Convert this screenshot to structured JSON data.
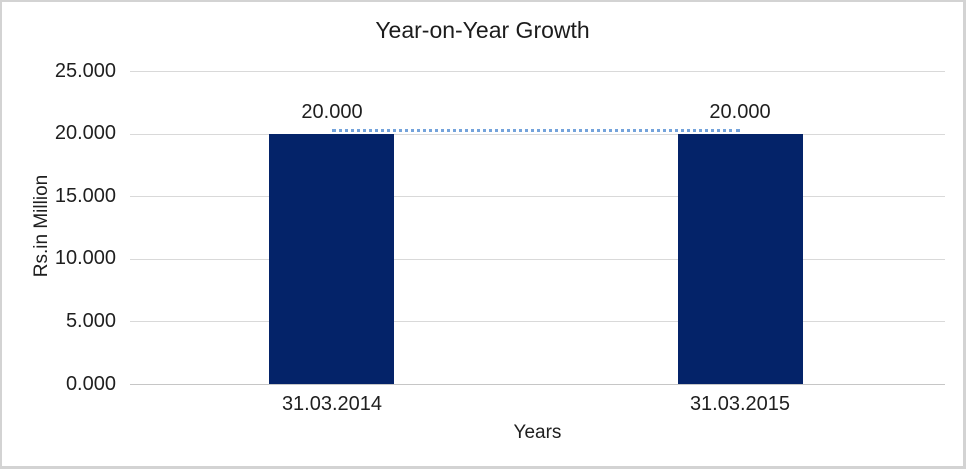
{
  "chart_data": {
    "type": "bar",
    "title": "Year-on-Year Growth",
    "xlabel": "Years",
    "ylabel": "Rs.in Million",
    "categories": [
      "31.03.2014",
      "31.03.2015"
    ],
    "series": [
      {
        "name": "bar-series",
        "type": "bar",
        "values": [
          20.0,
          20.0
        ]
      },
      {
        "name": "connector-line",
        "type": "line",
        "style": "dotted",
        "values": [
          20.0,
          20.0
        ]
      }
    ],
    "data_labels": [
      "20.000",
      "20.000"
    ],
    "yticks": [
      "25.000",
      "20.000",
      "15.000",
      "10.000",
      "5.000",
      "0.000"
    ],
    "ylim": [
      0,
      25
    ],
    "grid": true,
    "legend": "none"
  },
  "colors": {
    "bar_color": "#042369",
    "line_color": "#74a3db",
    "grid_color": "#d9d9d9"
  }
}
